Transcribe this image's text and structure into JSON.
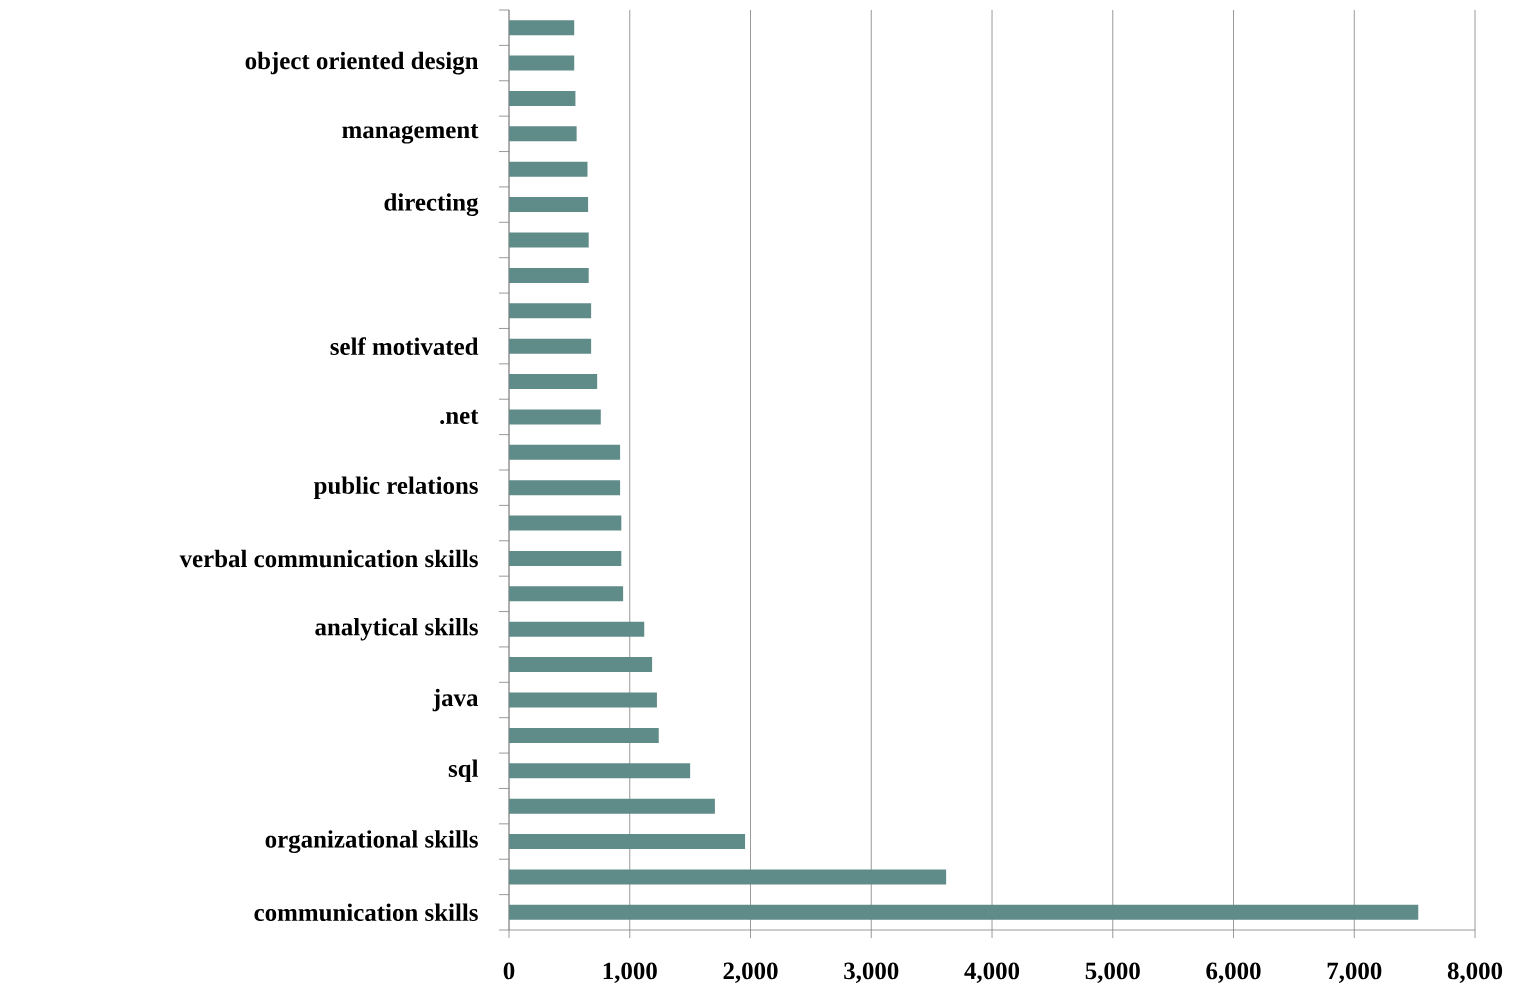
{
  "chart_data": {
    "type": "bar",
    "orientation": "horizontal",
    "categories": [
      null,
      "object oriented design",
      null,
      "management",
      null,
      "directing",
      null,
      null,
      null,
      "self motivated",
      null,
      ".net",
      null,
      "public relations",
      null,
      "verbal communication skills",
      null,
      "analytical skills",
      null,
      "java",
      null,
      "sql",
      null,
      "organizational skills",
      null,
      "communication skills"
    ],
    "values": [
      540,
      540,
      550,
      560,
      650,
      655,
      660,
      660,
      680,
      680,
      730,
      760,
      920,
      920,
      930,
      930,
      945,
      1120,
      1185,
      1225,
      1240,
      1500,
      1705,
      1955,
      3620,
      7530
    ],
    "color": "#5f8b89",
    "xlim": [
      0,
      8000
    ],
    "xticks": [
      0,
      {
        "value": 1000,
        "label": "1,000"
      },
      {
        "value": 2000,
        "label": "2,000"
      },
      {
        "value": 3000,
        "label": "3,000"
      },
      {
        "value": 4000,
        "label": "4,000"
      },
      {
        "value": 5000,
        "label": "5,000"
      },
      {
        "value": 6000,
        "label": "6,000"
      },
      {
        "value": 7000,
        "label": "7,000"
      },
      {
        "value": 8000,
        "label": "8,000"
      }
    ],
    "grid": "x"
  }
}
